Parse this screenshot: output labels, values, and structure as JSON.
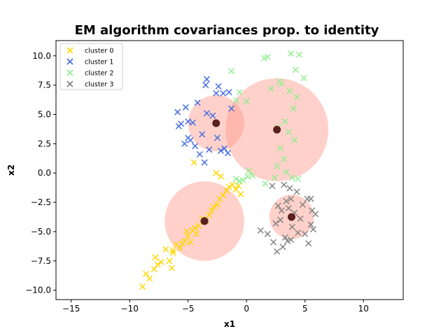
{
  "chart_data": {
    "type": "scatter",
    "title": "EM algorithm covariances prop. to identity",
    "xlabel": "x1",
    "ylabel": "x2",
    "xlim": [
      -16.3,
      13.4
    ],
    "ylim": [
      -10.8,
      11.3
    ],
    "xticks": [
      -15,
      -10,
      -5,
      0,
      5,
      10
    ],
    "xtick_labels": [
      "−15",
      "−10",
      "−5",
      "0",
      "5",
      "10"
    ],
    "yticks": [
      -10.0,
      -7.5,
      -5.0,
      -2.5,
      0.0,
      2.5,
      5.0,
      7.5,
      10.0
    ],
    "ytick_labels": [
      "−10.0",
      "−7.5",
      "−5.0",
      "−2.5",
      "0.0",
      "2.5",
      "5.0",
      "7.5",
      "10.0"
    ],
    "grid": false,
    "legend_position": "top-left",
    "marker": "x",
    "series": [
      {
        "name": "cluster 0",
        "color": "#ffd700",
        "points": [
          [
            -8.9,
            -9.7
          ],
          [
            -8.3,
            -9.0
          ],
          [
            -8.6,
            -8.6
          ],
          [
            -7.9,
            -8.2
          ],
          [
            -7.6,
            -7.8
          ],
          [
            -7.8,
            -7.2
          ],
          [
            -7.3,
            -7.6
          ],
          [
            -6.4,
            -8.1
          ],
          [
            -6.6,
            -7.5
          ],
          [
            -6.9,
            -6.5
          ],
          [
            -6.3,
            -6.6
          ],
          [
            -6.0,
            -6.1
          ],
          [
            -5.7,
            -6.4
          ],
          [
            -5.3,
            -5.8
          ],
          [
            -5.0,
            -5.4
          ],
          [
            -4.8,
            -5.9
          ],
          [
            -4.6,
            -4.9
          ],
          [
            -4.3,
            -5.2
          ],
          [
            -4.1,
            -4.5
          ],
          [
            -3.8,
            -3.9
          ],
          [
            -3.5,
            -4.1
          ],
          [
            -3.2,
            -3.6
          ],
          [
            -3.0,
            -3.2
          ],
          [
            -2.8,
            -2.9
          ],
          [
            -2.5,
            -2.7
          ],
          [
            -2.3,
            -2.2
          ],
          [
            -2.0,
            -1.9
          ],
          [
            -1.7,
            -1.5
          ],
          [
            -1.5,
            -1.2
          ],
          [
            -1.2,
            -1.0
          ],
          [
            -0.9,
            -1.4
          ],
          [
            -0.7,
            -1.1
          ],
          [
            -0.5,
            -1.8
          ],
          [
            -2.6,
            0.0
          ],
          [
            -2.2,
            -0.3
          ],
          [
            -4.5,
            0.9
          ],
          [
            -6.3,
            -6.8
          ],
          [
            -5.5,
            -6.0
          ],
          [
            -5.1,
            -5.0
          ],
          [
            -4.4,
            -4.7
          ]
        ]
      },
      {
        "name": "cluster 1",
        "color": "#4169e1",
        "points": [
          [
            -3.5,
            7.5
          ],
          [
            -3.4,
            8.0
          ],
          [
            -2.6,
            6.8
          ],
          [
            -2.4,
            7.4
          ],
          [
            -2.0,
            6.8
          ],
          [
            -1.5,
            6.9
          ],
          [
            -4.2,
            6.0
          ],
          [
            -5.2,
            5.6
          ],
          [
            -5.9,
            5.2
          ],
          [
            -5.6,
            4.2
          ],
          [
            -5.0,
            4.4
          ],
          [
            -4.6,
            4.3
          ],
          [
            -5.0,
            3.0
          ],
          [
            -5.3,
            2.5
          ],
          [
            -4.4,
            2.3
          ],
          [
            -4.0,
            1.6
          ],
          [
            -3.6,
            0.9
          ],
          [
            -3.2,
            2.0
          ],
          [
            -2.2,
            1.9
          ],
          [
            -1.9,
            2.1
          ],
          [
            -1.6,
            1.7
          ],
          [
            -3.4,
            5.1
          ],
          [
            -2.9,
            4.9
          ],
          [
            -3.8,
            3.3
          ],
          [
            -2.5,
            3.0
          ],
          [
            -4.8,
            2.8
          ],
          [
            -5.8,
            4.0
          ],
          [
            -1.3,
            5.5
          ]
        ]
      },
      {
        "name": "cluster 2",
        "color": "#90ee90",
        "points": [
          [
            1.5,
            9.8
          ],
          [
            1.8,
            9.9
          ],
          [
            3.8,
            10.2
          ],
          [
            4.5,
            10.1
          ],
          [
            4.2,
            8.8
          ],
          [
            4.9,
            8.1
          ],
          [
            -1.3,
            8.7
          ],
          [
            -0.6,
            6.9
          ],
          [
            -0.9,
            6.2
          ],
          [
            0.0,
            6.1
          ],
          [
            2.8,
            7.8
          ],
          [
            3.0,
            7.6
          ],
          [
            2.1,
            7.2
          ],
          [
            3.7,
            7.0
          ],
          [
            4.3,
            6.5
          ],
          [
            4.0,
            5.5
          ],
          [
            3.3,
            4.4
          ],
          [
            3.6,
            3.5
          ],
          [
            4.1,
            2.8
          ],
          [
            2.7,
            3.9
          ],
          [
            2.9,
            2.1
          ],
          [
            3.2,
            1.2
          ],
          [
            2.6,
            0.6
          ],
          [
            3.4,
            0.1
          ],
          [
            3.9,
            -0.4
          ],
          [
            4.4,
            -0.5
          ],
          [
            2.4,
            -0.4
          ],
          [
            1.6,
            -0.9
          ],
          [
            -0.9,
            -0.5
          ],
          [
            -0.6,
            -0.7
          ],
          [
            -0.3,
            -0.6
          ],
          [
            0.1,
            -0.3
          ],
          [
            0.5,
            -0.2
          ],
          [
            0.2,
            0.2
          ]
        ]
      },
      {
        "name": "cluster 3",
        "color": "#808080",
        "points": [
          [
            2.2,
            -1.1
          ],
          [
            3.2,
            -1.0
          ],
          [
            3.7,
            -1.3
          ],
          [
            4.3,
            -1.6
          ],
          [
            5.2,
            -2.2
          ],
          [
            5.5,
            -2.2
          ],
          [
            5.6,
            -3.2
          ],
          [
            5.9,
            -3.5
          ],
          [
            5.5,
            -4.4
          ],
          [
            5.7,
            -4.8
          ],
          [
            5.0,
            -5.2
          ],
          [
            5.3,
            -6.0
          ],
          [
            3.8,
            -5.7
          ],
          [
            3.5,
            -5.8
          ],
          [
            3.3,
            -5.5
          ],
          [
            3.1,
            -6.3
          ],
          [
            2.6,
            -6.7
          ],
          [
            2.3,
            -5.9
          ],
          [
            1.8,
            -5.2
          ],
          [
            1.2,
            -4.9
          ],
          [
            2.5,
            -4.3
          ],
          [
            3.0,
            -3.2
          ],
          [
            2.7,
            -2.8
          ],
          [
            3.4,
            -2.4
          ],
          [
            3.6,
            -3.0
          ],
          [
            4.1,
            -3.4
          ],
          [
            4.6,
            -3.9
          ],
          [
            3.9,
            -4.6
          ],
          [
            2.9,
            -4.0
          ],
          [
            4.8,
            -2.7
          ],
          [
            3.8,
            -2.2
          ],
          [
            4.4,
            -5.1
          ]
        ]
      }
    ],
    "components": [
      {
        "center": [
          -3.6,
          -4.1
        ],
        "radius": 3.4
      },
      {
        "center": [
          -2.6,
          4.25
        ],
        "radius": 2.4
      },
      {
        "center": [
          2.6,
          3.7
        ],
        "radius": 4.4
      },
      {
        "center": [
          3.85,
          -3.75
        ],
        "radius": 1.9
      }
    ],
    "component_fill": "#ff9a8a",
    "center_color": "#5a2020"
  }
}
